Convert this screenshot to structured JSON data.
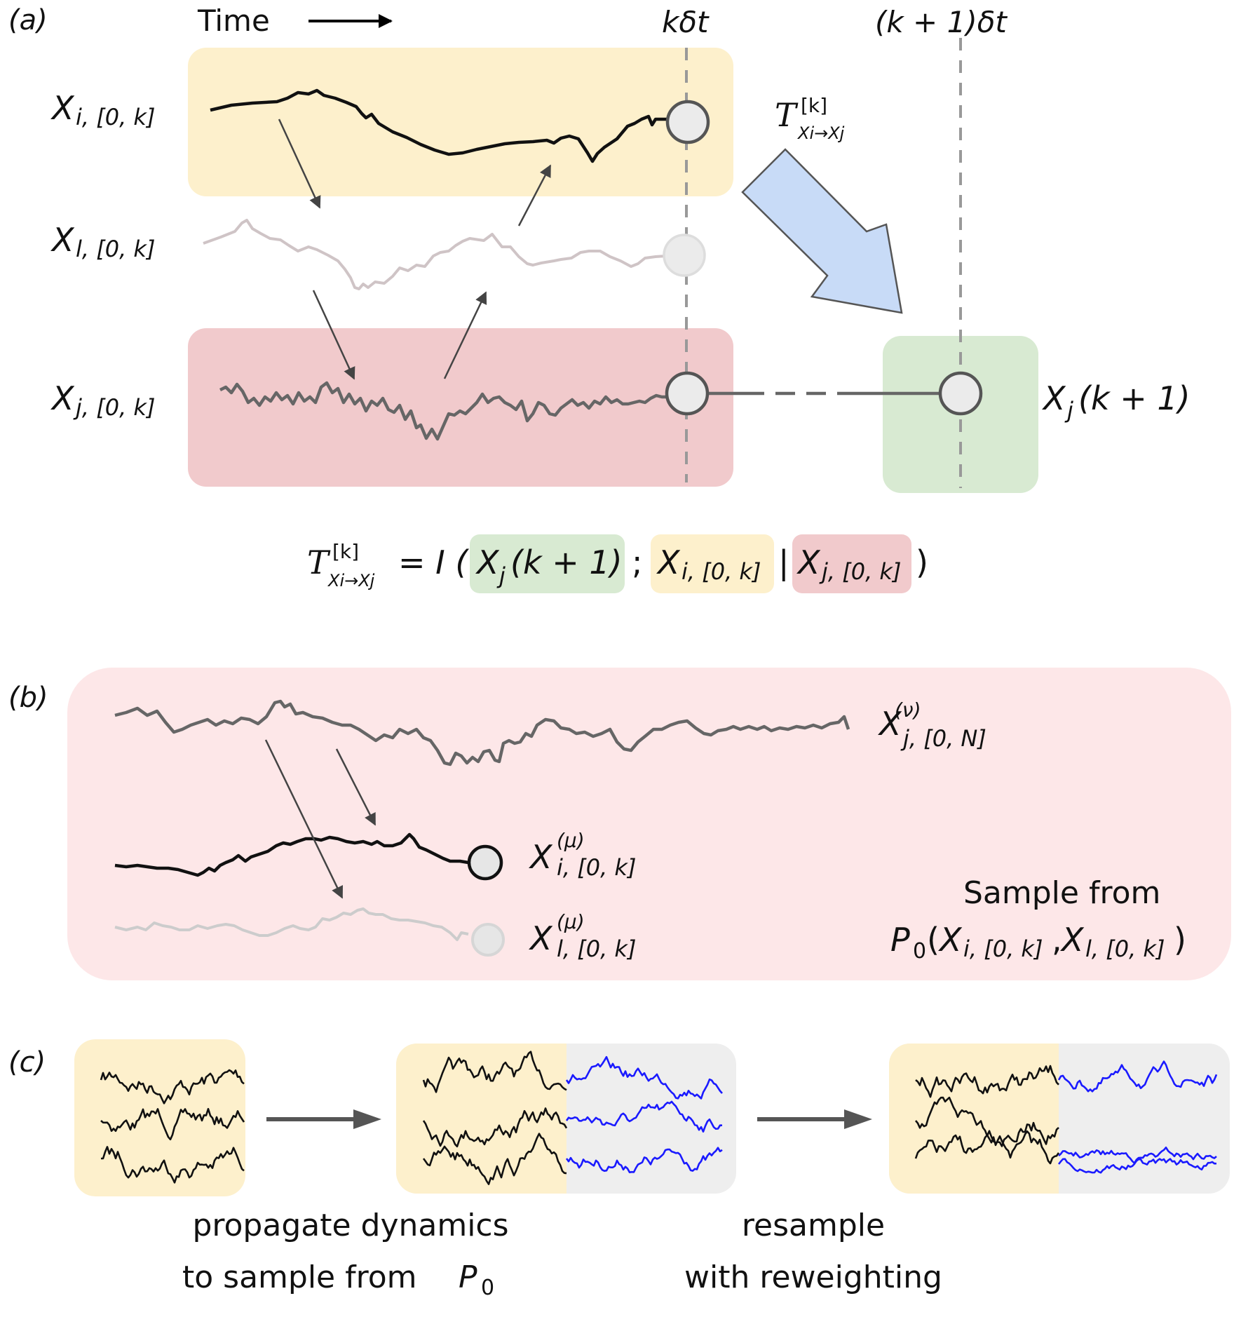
{
  "panels": {
    "a": {
      "label": "(a)",
      "time_label": "Time",
      "k_dt": "kδt",
      "k1_dt": "(k + 1)δt",
      "rows": {
        "xi": {
          "base": "X",
          "sub": "i, [0, k]"
        },
        "xl": {
          "base": "X",
          "sub": "l, [0, k]"
        },
        "xj": {
          "base": "X",
          "sub": "j, [0, k]"
        }
      },
      "target": {
        "base": "X",
        "sub": "j",
        "rest": "(k + 1)"
      },
      "te_arrow_label": {
        "sym": "T",
        "sup": "[k]",
        "sub": "Xi→Xj"
      },
      "equation": {
        "lhs_sym": "T",
        "lhs_sup": "[k]",
        "lhs_sub": "Xi→Xj",
        "eq": "= I (",
        "term1_base": "X",
        "term1_sub": "j",
        "term1_rest": "(k + 1)",
        "sep": ";",
        "term2_base": "X",
        "term2_sub": "i, [0, k]",
        "bar": "|",
        "term3_base": "X",
        "term3_sub": "j, [0, k]",
        "close": ")"
      }
    },
    "b": {
      "label": "(b)",
      "xj_label": {
        "base": "X",
        "sub": "j, [0, N]",
        "sup": "(ν)"
      },
      "xi_label": {
        "base": "X",
        "sub": "i, [0, k]",
        "sup": "(μ)"
      },
      "xl_label": {
        "base": "X",
        "sub": "l, [0, k]",
        "sup": "(μ)"
      },
      "sample_line1": "Sample from",
      "sample_line2_prefix": "P",
      "sample_line2_sub": "0",
      "sample_line2_args_a_base": "X",
      "sample_line2_args_a_sub": "i, [0, k]",
      "sample_line2_comma": ",",
      "sample_line2_args_b_base": "X",
      "sample_line2_args_b_sub": "l, [0, k]",
      "sample_line2_open": "(",
      "sample_line2_close": ")"
    },
    "c": {
      "label": "(c)",
      "caption1_line1": "propagate dynamics",
      "caption1_line2": "to sample from ",
      "caption1_p": "P",
      "caption1_p_sub": "0",
      "caption2_line1": "resample",
      "caption2_line2": "with reweighting"
    }
  },
  "colors": {
    "yellow": "#fdf0cc",
    "red": "#f1cacc",
    "pink": "#fde7e8",
    "green": "#d8ead2",
    "blue_arrow": "#c8dbf7",
    "gray_box": "#eeeeee",
    "dark_trace": "#111111",
    "mid_trace": "#666666",
    "light_trace": "#cccccc",
    "blue_trace": "#1a1aff"
  },
  "icons": [
    "transfer-entropy-arrow-icon",
    "time-arrow-icon",
    "propagate-arrow-icon",
    "resample-arrow-icon"
  ]
}
